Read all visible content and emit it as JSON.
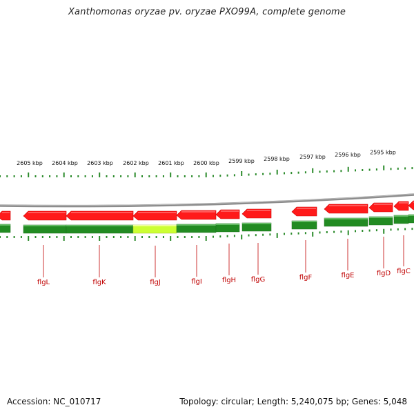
{
  "title": "Xanthomonas oryzae pv. oryzae PXO99A, complete genome",
  "footer": {
    "accession": "Accession: NC_010717",
    "summary": "Topology: circular; Length: 5,240,075 bp; Genes: 5,048"
  },
  "colors": {
    "gene_arrow": "#ff1a1a",
    "cds_bar": "#228b22",
    "highlight_bar": "#ccff33",
    "backbone": "#8c8c8c",
    "ticks": "#2a8a2a",
    "gene_label": "#c00000"
  },
  "scale_labels": [
    "2605 kbp",
    "2604 kbp",
    "2603 kbp",
    "2602 kbp",
    "2601 kbp",
    "2600 kbp",
    "2599 kbp",
    "2598 kbp",
    "2597 kbp",
    "2596 kbp",
    "2595 kbp"
  ],
  "gene_labels": [
    "flgL",
    "flgK",
    "flgJ",
    "flgI",
    "flgH",
    "flgG",
    "flgF",
    "flgE",
    "flgD",
    "flgC"
  ],
  "highlighted_gene": "flgJ"
}
